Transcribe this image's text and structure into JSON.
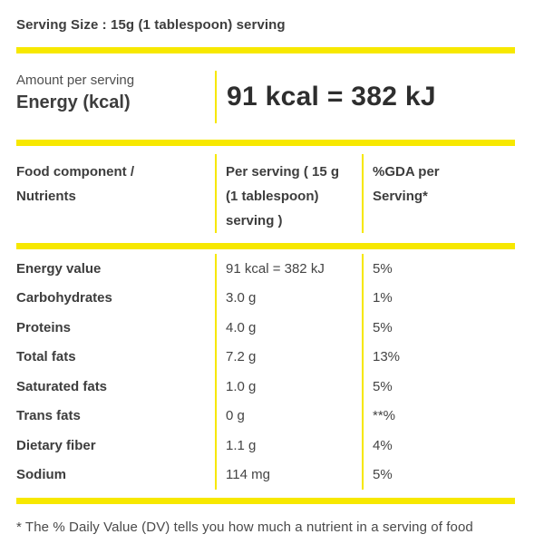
{
  "header": {
    "serving_size": "Serving Size : 15g (1 tablespoon) serving"
  },
  "energy": {
    "amount_label": "Amount per serving",
    "name": "Energy (kcal)",
    "value": "91 kcal = 382 kJ"
  },
  "table": {
    "headers": [
      "Food component / Nutrients",
      "Per serving ( 15 g (1 tablespoon) serving )",
      "%GDA per Serving*"
    ],
    "rows": [
      {
        "nutrient": "Energy value",
        "per_serving": "91 kcal = 382 kJ",
        "gda": "5%"
      },
      {
        "nutrient": "Carbohydrates",
        "per_serving": "3.0 g",
        "gda": "1%"
      },
      {
        "nutrient": "Proteins",
        "per_serving": "4.0 g",
        "gda": "5%"
      },
      {
        "nutrient": "Total fats",
        "per_serving": "7.2 g",
        "gda": "13%"
      },
      {
        "nutrient": "Saturated fats",
        "per_serving": "1.0 g",
        "gda": "5%"
      },
      {
        "nutrient": "Trans fats",
        "per_serving": "0 g",
        "gda": "**%"
      },
      {
        "nutrient": "Dietary fiber",
        "per_serving": "1.1 g",
        "gda": "4%"
      },
      {
        "nutrient": "Sodium",
        "per_serving": "114 mg",
        "gda": "5%"
      }
    ]
  },
  "footer": {
    "note": "* The % Daily Value (DV) tells you how much a nutrient in a serving of food"
  },
  "colors": {
    "accent_yellow": "#f7e800",
    "text_dark": "#3d3d3d",
    "text_value": "#444444"
  }
}
